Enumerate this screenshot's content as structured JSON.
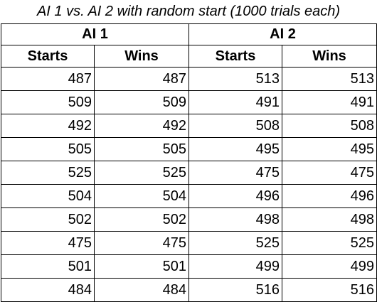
{
  "title": "AI 1 vs. AI 2 with random start (1000 trials each)",
  "groups": [
    "AI 1",
    "AI 2"
  ],
  "columns": [
    "Starts",
    "Wins",
    "Starts",
    "Wins"
  ],
  "rows": [
    [
      "487",
      "487",
      "513",
      "513"
    ],
    [
      "509",
      "509",
      "491",
      "491"
    ],
    [
      "492",
      "492",
      "508",
      "508"
    ],
    [
      "505",
      "505",
      "495",
      "495"
    ],
    [
      "525",
      "525",
      "475",
      "475"
    ],
    [
      "504",
      "504",
      "496",
      "496"
    ],
    [
      "502",
      "502",
      "498",
      "498"
    ],
    [
      "475",
      "475",
      "525",
      "525"
    ],
    [
      "501",
      "501",
      "499",
      "499"
    ],
    [
      "484",
      "484",
      "516",
      "516"
    ]
  ]
}
